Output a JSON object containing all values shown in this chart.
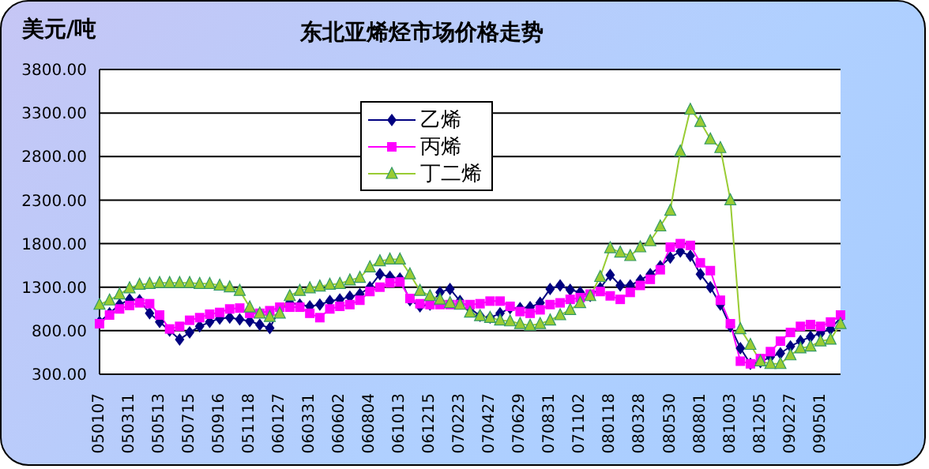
{
  "chart_data": {
    "type": "line",
    "title": "东北亚烯烃市场价格走势",
    "ylabel": "美元/吨",
    "categories": [
      "050107",
      null,
      null,
      "050311",
      null,
      null,
      "050513",
      null,
      null,
      "050715",
      null,
      null,
      "050916",
      null,
      null,
      "051118",
      null,
      null,
      "060127",
      null,
      null,
      "060331",
      null,
      null,
      "060602",
      null,
      null,
      "060804",
      null,
      null,
      "061013",
      null,
      null,
      "061215",
      null,
      null,
      "070223",
      null,
      null,
      "070427",
      null,
      null,
      "070629",
      null,
      null,
      "070831",
      null,
      null,
      "071102",
      null,
      null,
      "080118",
      null,
      null,
      "080328",
      null,
      null,
      "080530",
      null,
      null,
      "080801",
      null,
      null,
      "081003",
      null,
      null,
      "081205",
      null,
      null,
      "090227",
      null,
      null,
      "090501",
      null,
      null
    ],
    "series": [
      {
        "name": "乙烯",
        "color": "#000080",
        "marker": "diamond",
        "values": [
          900,
          1000,
          1100,
          1160,
          1150,
          1000,
          900,
          800,
          700,
          780,
          850,
          900,
          940,
          950,
          930,
          910,
          870,
          830,
          1050,
          1120,
          1100,
          1080,
          1100,
          1140,
          1160,
          1190,
          1220,
          1300,
          1450,
          1420,
          1400,
          1150,
          1080,
          1100,
          1240,
          1280,
          1140,
          1060,
          970,
          950,
          1000,
          1060,
          1060,
          1070,
          1120,
          1280,
          1320,
          1270,
          1240,
          1200,
          1290,
          1440,
          1320,
          1320,
          1380,
          1450,
          1540,
          1640,
          1710,
          1660,
          1450,
          1300,
          1100,
          850,
          600,
          420,
          440,
          500,
          540,
          620,
          680,
          730,
          770,
          820,
          950
        ]
      },
      {
        "name": "丙烯",
        "color": "#ff00ff",
        "marker": "square",
        "values": [
          880,
          980,
          1050,
          1090,
          1120,
          1110,
          980,
          820,
          850,
          920,
          950,
          990,
          1010,
          1050,
          1060,
          1000,
          1000,
          1030,
          1070,
          1070,
          1070,
          1000,
          950,
          1050,
          1080,
          1100,
          1150,
          1250,
          1300,
          1350,
          1360,
          1170,
          1110,
          1100,
          1100,
          1100,
          1100,
          1100,
          1110,
          1140,
          1140,
          1080,
          1020,
          1000,
          1040,
          1100,
          1120,
          1160,
          1180,
          1220,
          1250,
          1200,
          1160,
          1240,
          1320,
          1390,
          1500,
          1760,
          1800,
          1780,
          1580,
          1490,
          1150,
          880,
          450,
          420,
          480,
          560,
          680,
          780,
          850,
          870,
          850,
          900,
          980
        ]
      },
      {
        "name": "丁二烯",
        "color": "#99cc33",
        "marker": "triangle",
        "values": [
          1100,
          1150,
          1220,
          1290,
          1330,
          1340,
          1350,
          1350,
          1350,
          1350,
          1340,
          1340,
          1320,
          1300,
          1260,
          1070,
          1000,
          960,
          1000,
          1200,
          1260,
          1290,
          1310,
          1330,
          1340,
          1380,
          1410,
          1530,
          1600,
          1620,
          1620,
          1450,
          1260,
          1200,
          1160,
          1120,
          1100,
          1010,
          970,
          950,
          920,
          910,
          880,
          860,
          880,
          920,
          980,
          1040,
          1120,
          1200,
          1420,
          1750,
          1700,
          1660,
          1760,
          1830,
          2000,
          2180,
          2860,
          3340,
          3200,
          3000,
          2900,
          2300,
          820,
          640,
          450,
          420,
          420,
          520,
          600,
          620,
          680,
          700,
          880
        ]
      }
    ],
    "ylim": [
      300,
      3800
    ],
    "yticks": [
      {
        "value": 300,
        "label": "300.00"
      },
      {
        "value": 800,
        "label": "800.00"
      },
      {
        "value": 1300,
        "label": "1300.00"
      },
      {
        "value": 1800,
        "label": "1800.00"
      },
      {
        "value": 2300,
        "label": "2300.00"
      },
      {
        "value": 2800,
        "label": "2800.00"
      },
      {
        "value": 3300,
        "label": "3300.00"
      },
      {
        "value": 3800,
        "label": "3800.00"
      }
    ],
    "grid": "y",
    "legend": "top",
    "line_style": "solid"
  }
}
